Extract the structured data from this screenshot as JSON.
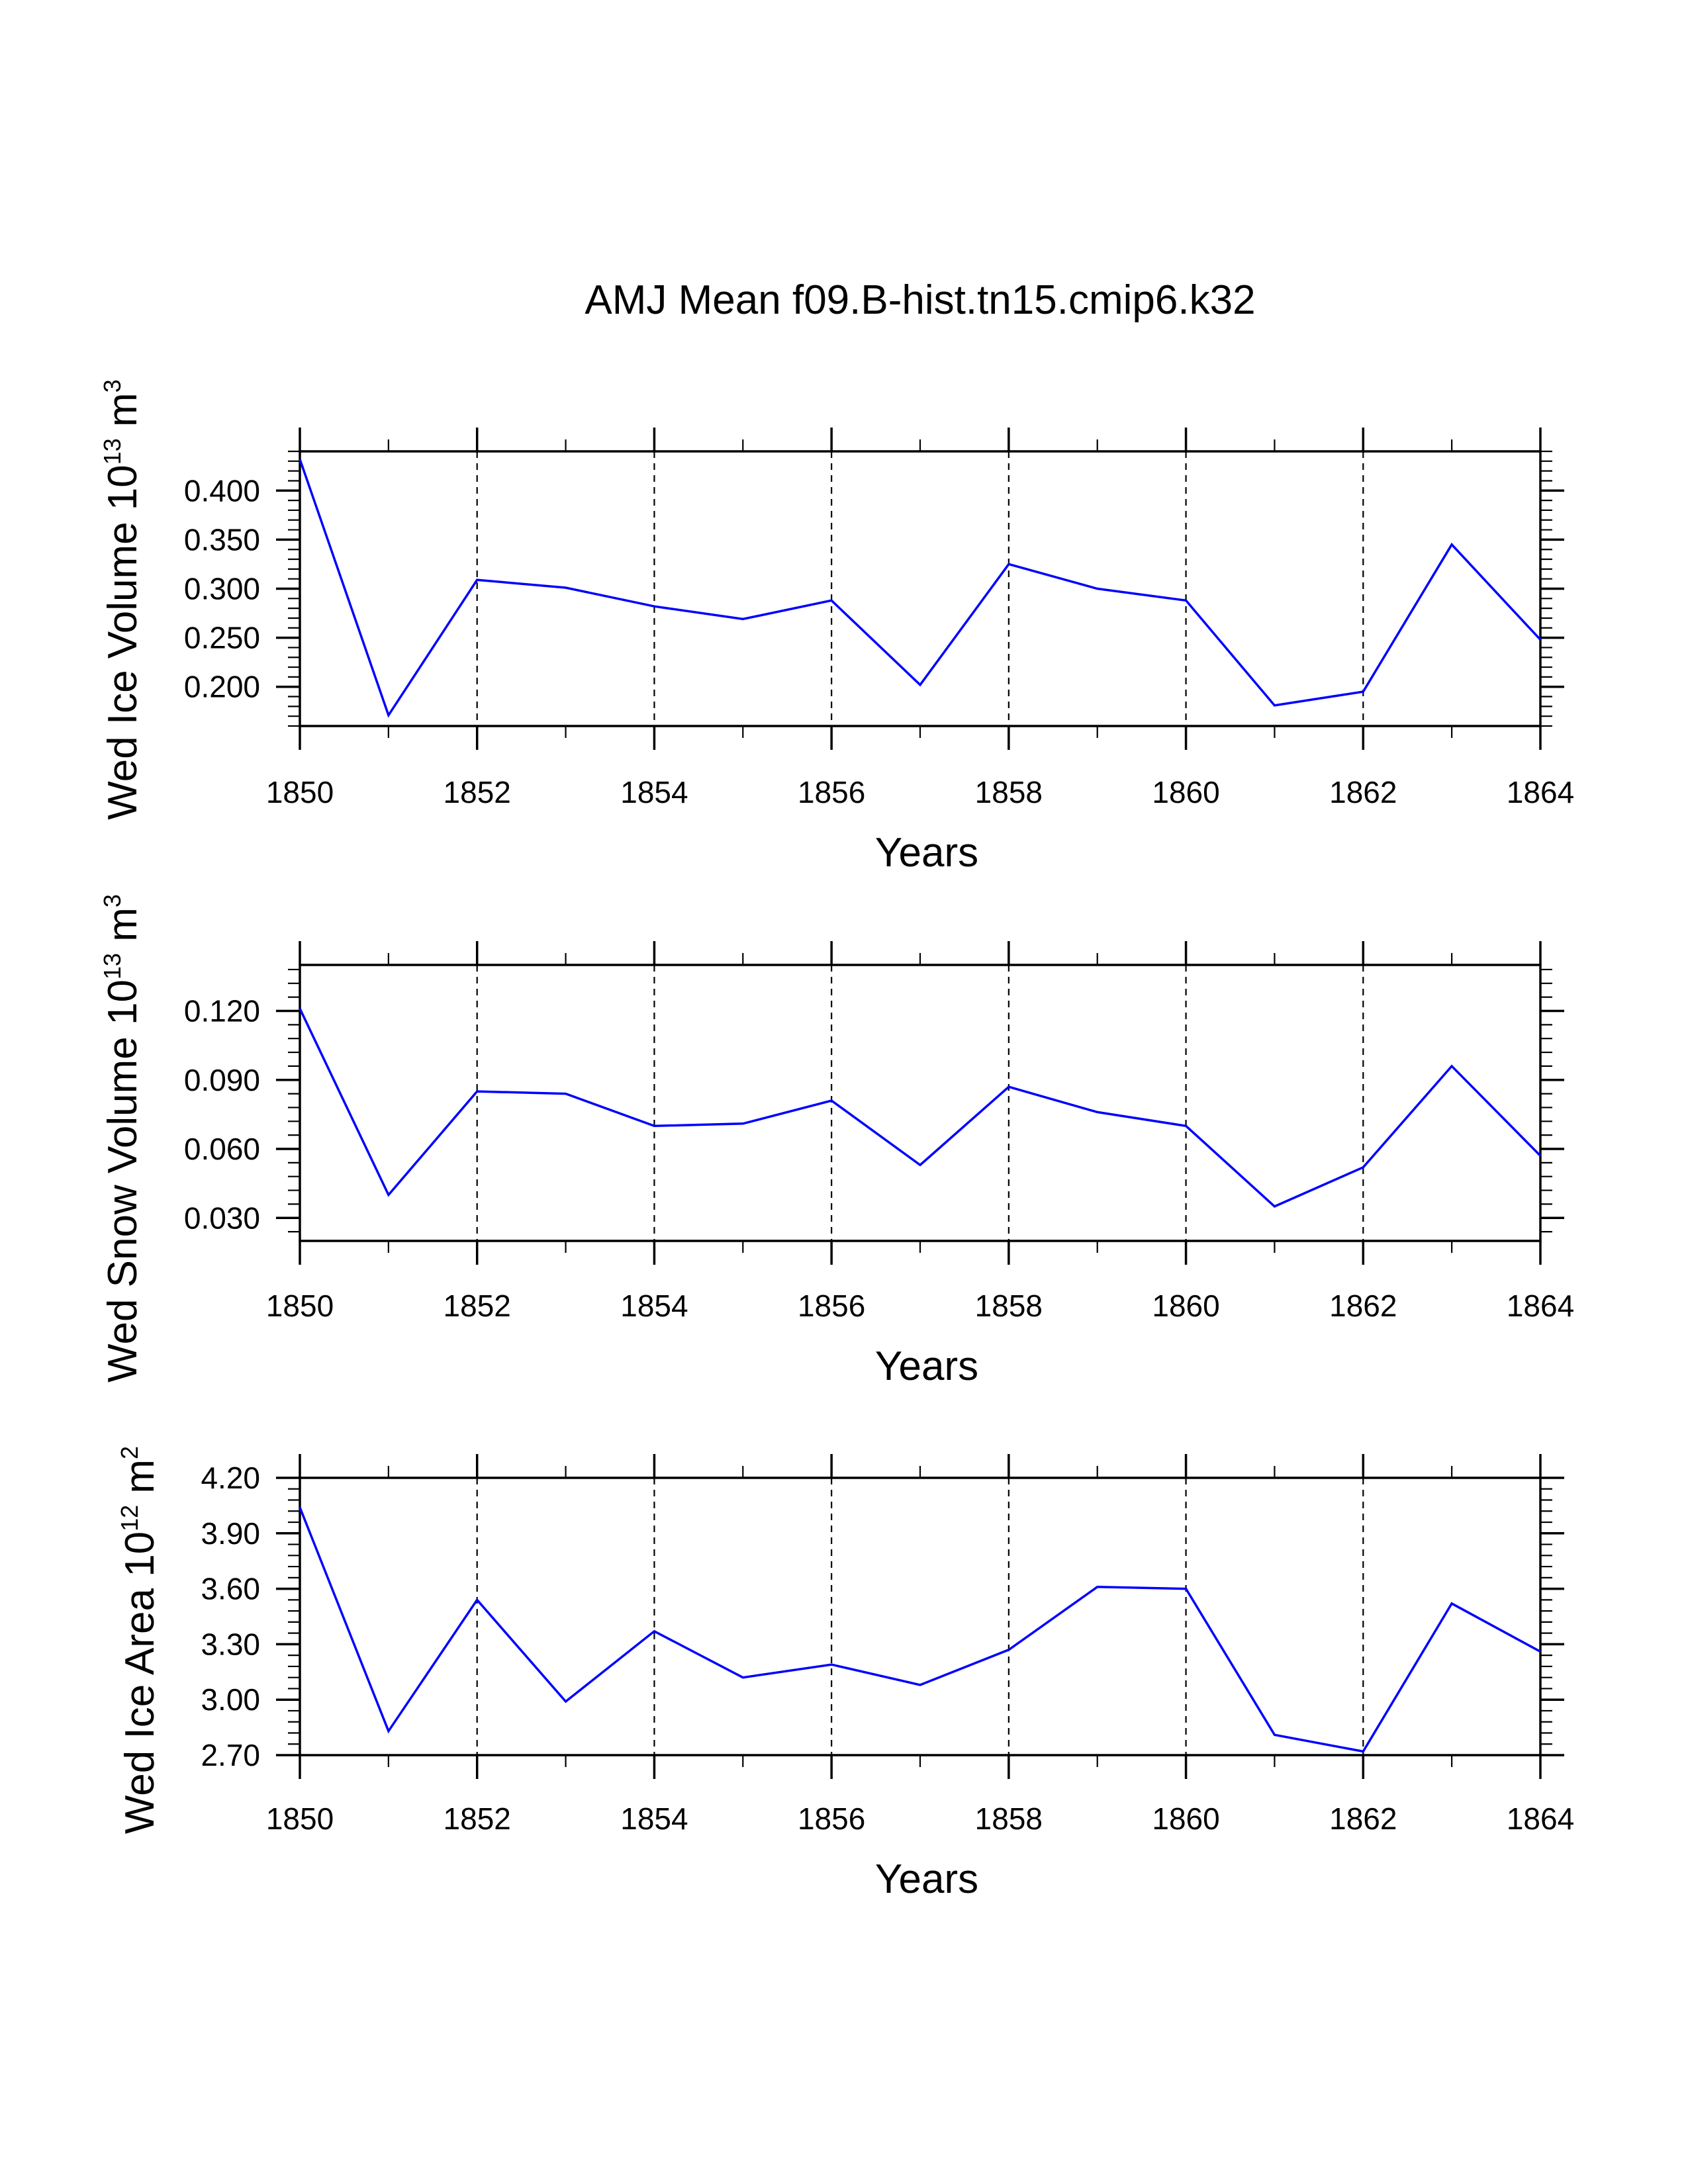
{
  "figure": {
    "title": "AMJ Mean f09.B-hist.tn15.cmip6.k32"
  },
  "colors": {
    "line": "#0000ff",
    "axis": "#000000",
    "grid": "#000000"
  },
  "chart_data": [
    {
      "type": "line",
      "title": "",
      "xlabel": "Years",
      "ylabel": "Wed Ice Volume 10",
      "ylabel_exponent": "13",
      "ylabel_unit": " m",
      "ylabel_unit_exponent": "3",
      "xlim": [
        1850,
        1864
      ],
      "ylim": [
        0.16,
        0.44
      ],
      "x_ticks": [
        1850,
        1852,
        1854,
        1856,
        1858,
        1860,
        1862,
        1864
      ],
      "x_tick_labels": [
        "1850",
        "1852",
        "1854",
        "1856",
        "1858",
        "1860",
        "1862",
        "1864"
      ],
      "y_ticks": [
        0.2,
        0.25,
        0.3,
        0.35,
        0.4
      ],
      "y_tick_labels": [
        "0.200",
        "0.250",
        "0.300",
        "0.350",
        "0.400"
      ],
      "y_minor_step": 0.01,
      "grid": "vertical dashed at labeled years",
      "x": [
        1850,
        1851,
        1852,
        1853,
        1854,
        1855,
        1856,
        1857,
        1858,
        1859,
        1860,
        1861,
        1862,
        1863,
        1864
      ],
      "series": [
        {
          "name": "Wed Ice Volume",
          "values": [
            0.432,
            0.171,
            0.309,
            0.301,
            0.282,
            0.269,
            0.288,
            0.202,
            0.325,
            0.3,
            0.288,
            0.181,
            0.195,
            0.345,
            0.248
          ]
        }
      ]
    },
    {
      "type": "line",
      "title": "",
      "xlabel": "Years",
      "ylabel": "Wed Snow Volume 10",
      "ylabel_exponent": "13",
      "ylabel_unit": " m",
      "ylabel_unit_exponent": "3",
      "xlim": [
        1850,
        1864
      ],
      "ylim": [
        0.02,
        0.14
      ],
      "x_ticks": [
        1850,
        1852,
        1854,
        1856,
        1858,
        1860,
        1862,
        1864
      ],
      "x_tick_labels": [
        "1850",
        "1852",
        "1854",
        "1856",
        "1858",
        "1860",
        "1862",
        "1864"
      ],
      "y_ticks": [
        0.03,
        0.06,
        0.09,
        0.12
      ],
      "y_tick_labels": [
        "0.030",
        "0.060",
        "0.090",
        "0.120"
      ],
      "y_minor_step": 0.006,
      "grid": "vertical dashed at labeled years",
      "x": [
        1850,
        1851,
        1852,
        1853,
        1854,
        1855,
        1856,
        1857,
        1858,
        1859,
        1860,
        1861,
        1862,
        1863,
        1864
      ],
      "series": [
        {
          "name": "Wed Snow Volume",
          "values": [
            0.121,
            0.04,
            0.085,
            0.084,
            0.07,
            0.071,
            0.081,
            0.053,
            0.087,
            0.076,
            0.07,
            0.035,
            0.052,
            0.096,
            0.057
          ]
        }
      ]
    },
    {
      "type": "line",
      "title": "",
      "xlabel": "Years",
      "ylabel": "Wed Ice Area 10",
      "ylabel_exponent": "12",
      "ylabel_unit": " m",
      "ylabel_unit_exponent": "2",
      "xlim": [
        1850,
        1864
      ],
      "ylim": [
        2.7,
        4.2
      ],
      "x_ticks": [
        1850,
        1852,
        1854,
        1856,
        1858,
        1860,
        1862,
        1864
      ],
      "x_tick_labels": [
        "1850",
        "1852",
        "1854",
        "1856",
        "1858",
        "1860",
        "1862",
        "1864"
      ],
      "y_ticks": [
        2.7,
        3.0,
        3.3,
        3.6,
        3.9,
        4.2
      ],
      "y_tick_labels": [
        "2.70",
        "3.00",
        "3.30",
        "3.60",
        "3.90",
        "4.20"
      ],
      "y_minor_step": 0.06,
      "grid": "vertical dashed at labeled years",
      "x": [
        1850,
        1851,
        1852,
        1853,
        1854,
        1855,
        1856,
        1857,
        1858,
        1859,
        1860,
        1861,
        1862,
        1863,
        1864
      ],
      "series": [
        {
          "name": "Wed Ice Area",
          "values": [
            4.04,
            2.83,
            3.54,
            2.99,
            3.37,
            3.12,
            3.19,
            3.08,
            3.27,
            3.61,
            3.6,
            2.81,
            2.72,
            3.52,
            3.26
          ]
        }
      ]
    }
  ]
}
